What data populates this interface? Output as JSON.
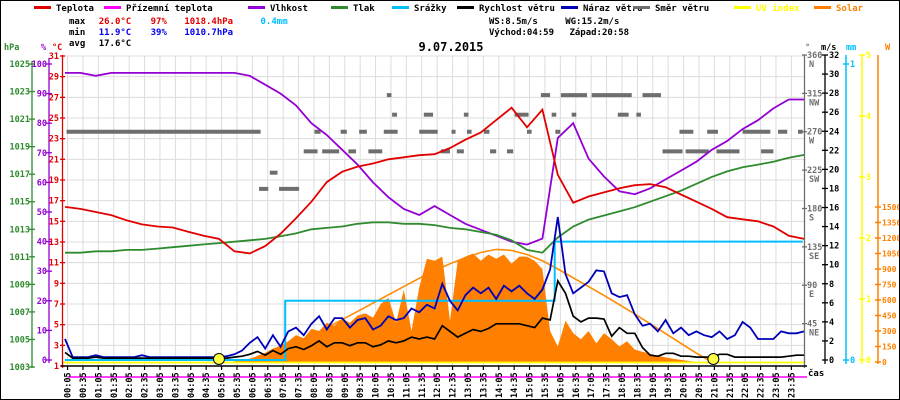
{
  "title": "9.07.2015",
  "legend": {
    "items": [
      {
        "key": "teplota",
        "label": "Teplota",
        "color": "#e10000",
        "text_color": "#000000"
      },
      {
        "key": "prizemni-teplota",
        "label": "Přízemní teplota",
        "color": "#ff00ff",
        "text_color": "#000000"
      },
      {
        "key": "vlhkost",
        "label": "Vlhkost",
        "color": "#9400d3",
        "text_color": "#000000"
      },
      {
        "key": "tlak",
        "label": "Tlak",
        "color": "#2e8b2e",
        "text_color": "#000000"
      },
      {
        "key": "srazky",
        "label": "Srážky",
        "color": "#00bfff",
        "text_color": "#000000"
      },
      {
        "key": "rychlost-vetru",
        "label": "Rychlost větru",
        "color": "#000000",
        "text_color": "#000000"
      },
      {
        "key": "naraz-vetru",
        "label": "Náraz větru",
        "color": "#0000b8",
        "text_color": "#000000"
      },
      {
        "key": "smer-vetru",
        "label": "Směr větru",
        "color": "#6e6e6e",
        "text_color": "#000000"
      },
      {
        "key": "uv-index",
        "label": "UV index",
        "color": "#ffff00",
        "text_color": "#ffff00"
      },
      {
        "key": "solar",
        "label": "Solar",
        "color": "#ff8000",
        "text_color": "#ff8000"
      }
    ]
  },
  "stats": {
    "max_label": "max",
    "max_temp": "26.0°C",
    "max_hum": "97%",
    "max_pres": "1018.4hPa",
    "rain_total": "0.4mm",
    "min_label": "min",
    "min_temp": "11.9°C",
    "min_hum": "39%",
    "min_pres": "1010.7hPa",
    "avg_label": "avg",
    "avg_temp": "17.6°C",
    "ws": "WS:8.5m/s",
    "wg": "WG:15.2m/s",
    "sunrise": "Východ:04:59",
    "sunset": "Západ:20:58"
  },
  "chart_data": {
    "type": "line",
    "title": "9.07.2015",
    "x_axis_label": "čas",
    "x_hours_range": [
      0,
      24
    ],
    "x_tick_labels": [
      "00:05",
      "00:35",
      "01:05",
      "01:35",
      "02:05",
      "02:35",
      "03:05",
      "03:35",
      "04:05",
      "04:35",
      "05:05",
      "05:35",
      "06:05",
      "06:35",
      "07:05",
      "07:35",
      "08:05",
      "08:35",
      "09:05",
      "09:35",
      "10:05",
      "10:35",
      "11:05",
      "11:35",
      "12:05",
      "12:35",
      "13:05",
      "13:35",
      "14:05",
      "14:35",
      "15:05",
      "15:35",
      "16:05",
      "16:35",
      "17:05",
      "17:35",
      "18:05",
      "18:35",
      "19:05",
      "19:35",
      "20:05",
      "20:35",
      "21:05",
      "21:35",
      "22:05",
      "22:35",
      "23:05",
      "23:35"
    ],
    "axes": {
      "pressure_hpa": {
        "header": "hPa",
        "color": "#2e8b2e",
        "ticks": [
          1025,
          1023,
          1021,
          1019,
          1017,
          1015,
          1013,
          1011,
          1009,
          1007,
          1005,
          1003
        ],
        "range": [
          1003,
          1025
        ]
      },
      "humidity_pct": {
        "header": "%",
        "color": "#9400d3",
        "ticks": [
          100,
          90,
          80,
          70,
          60,
          50,
          40,
          30,
          20,
          10,
          0
        ],
        "range": [
          0,
          100
        ]
      },
      "temp_c": {
        "header": "°C",
        "color": "#e10000",
        "ticks": [
          31,
          29,
          27,
          25,
          23,
          21,
          19,
          17,
          15,
          13,
          11,
          9,
          7,
          5,
          3,
          1
        ],
        "range": [
          1,
          31
        ]
      },
      "wind_dir_deg": {
        "header": "°",
        "color": "#6e6e6e",
        "ticks": [
          [
            360,
            "N"
          ],
          [
            315,
            "NW"
          ],
          [
            270,
            "W"
          ],
          [
            225,
            "SW"
          ],
          [
            180,
            "S"
          ],
          [
            135,
            "SE"
          ],
          [
            90,
            "E"
          ],
          [
            45,
            "NE"
          ]
        ],
        "range": [
          0,
          360
        ]
      },
      "wind_ms": {
        "header": "m/s",
        "color": "#000000",
        "ticks": [
          32,
          30,
          28,
          26,
          24,
          22,
          20,
          18,
          16,
          14,
          12,
          10,
          8,
          6,
          4,
          2,
          0
        ],
        "range": [
          0,
          32
        ]
      },
      "rain_mm": {
        "header": "mm",
        "color": "#00bfff",
        "ticks": [
          1,
          0
        ],
        "range": [
          0,
          1
        ]
      },
      "uv_index": {
        "header": "",
        "color": "#ffff00",
        "ticks": [
          5,
          4,
          3,
          2,
          1,
          0
        ],
        "range": [
          0,
          5
        ]
      },
      "solar_w": {
        "header": "W",
        "color": "#ff8000",
        "ticks": [
          1500,
          1350,
          1200,
          1050,
          900,
          750,
          600,
          450,
          300,
          150,
          0
        ],
        "range": [
          0,
          1500
        ]
      }
    },
    "series": {
      "temperature_c": {
        "step_h": 0.5,
        "values": [
          16.4,
          16.2,
          15.9,
          15.6,
          15.1,
          14.7,
          14.5,
          14.4,
          14.0,
          13.6,
          13.3,
          12.1,
          11.9,
          12.6,
          13.8,
          15.3,
          16.9,
          18.8,
          19.8,
          20.3,
          20.6,
          21.0,
          21.2,
          21.4,
          21.5,
          22.1,
          22.9,
          23.6,
          24.8,
          26.0,
          24.1,
          25.8,
          19.5,
          16.8,
          17.4,
          17.8,
          18.2,
          18.5,
          18.6,
          18.3,
          17.6,
          16.9,
          16.2,
          15.4,
          15.2,
          15.0,
          14.5,
          13.6,
          13.3
        ]
      },
      "humidity_pct": {
        "step_h": 0.5,
        "values": [
          97,
          97,
          96,
          97,
          97,
          97,
          97,
          97,
          97,
          97,
          97,
          97,
          96,
          93,
          90,
          86,
          80,
          76,
          71,
          66,
          60,
          55,
          51,
          49,
          52,
          49,
          46,
          44,
          42,
          40,
          39,
          41,
          75,
          80,
          68,
          62,
          57,
          56,
          58,
          61,
          64,
          67,
          71,
          74,
          78,
          81,
          85,
          88,
          88
        ]
      },
      "pressure_hpa": {
        "step_h": 0.5,
        "values": [
          1011.3,
          1011.3,
          1011.4,
          1011.4,
          1011.5,
          1011.5,
          1011.6,
          1011.7,
          1011.8,
          1011.9,
          1012.0,
          1012.1,
          1012.2,
          1012.3,
          1012.5,
          1012.7,
          1013.0,
          1013.1,
          1013.2,
          1013.4,
          1013.5,
          1013.5,
          1013.4,
          1013.4,
          1013.3,
          1013.1,
          1013.0,
          1012.8,
          1012.6,
          1012.2,
          1011.5,
          1011.3,
          1012.4,
          1013.2,
          1013.7,
          1014.0,
          1014.3,
          1014.6,
          1015.0,
          1015.4,
          1015.8,
          1016.3,
          1016.8,
          1017.2,
          1017.5,
          1017.7,
          1017.9,
          1018.2,
          1018.4
        ]
      },
      "gust_ms": {
        "step_h": 0.25,
        "values": [
          2.2,
          0.3,
          0.3,
          0.3,
          0.5,
          0.3,
          0.3,
          0.3,
          0.3,
          0.3,
          0.5,
          0.3,
          0.3,
          0.3,
          0.3,
          0.3,
          0.3,
          0.3,
          0.3,
          0.3,
          0.3,
          0.4,
          0.6,
          1.0,
          1.8,
          2.4,
          1.2,
          2.6,
          1.4,
          3.0,
          3.4,
          2.6,
          3.8,
          4.6,
          3.2,
          4.4,
          4.4,
          3.4,
          4.2,
          4.4,
          3.2,
          3.6,
          4.6,
          4.2,
          4.4,
          5.4,
          5.0,
          5.8,
          5.4,
          8.0,
          6.2,
          5.2,
          6.8,
          7.6,
          7.0,
          7.6,
          6.4,
          7.8,
          7.2,
          7.8,
          7.0,
          6.4,
          7.4,
          9.5,
          15.0,
          9.0,
          7.0,
          7.6,
          8.2,
          9.4,
          9.3,
          7.0,
          6.6,
          6.8,
          4.8,
          3.6,
          3.8,
          3.0,
          4.2,
          2.8,
          3.4,
          2.6,
          3.0,
          2.6,
          2.4,
          3.0,
          2.2,
          2.6,
          4.0,
          3.4,
          2.2,
          2.2,
          2.2,
          3.0,
          2.8,
          2.8,
          3.0
        ]
      },
      "wind_ms": {
        "step_h": 0.25,
        "values": [
          0.8,
          0.2,
          0.2,
          0.2,
          0.3,
          0.2,
          0.2,
          0.2,
          0.2,
          0.2,
          0.2,
          0.2,
          0.2,
          0.2,
          0.2,
          0.2,
          0.2,
          0.2,
          0.2,
          0.2,
          0.2,
          0.2,
          0.3,
          0.4,
          0.6,
          0.9,
          0.5,
          1.0,
          0.6,
          1.2,
          1.4,
          1.1,
          1.5,
          2.0,
          1.4,
          1.8,
          1.8,
          1.5,
          1.8,
          1.8,
          1.4,
          1.6,
          2.0,
          1.8,
          2.0,
          2.4,
          2.2,
          2.4,
          2.2,
          3.6,
          3.0,
          2.4,
          2.8,
          3.2,
          3.0,
          3.3,
          3.8,
          3.8,
          3.8,
          3.8,
          3.6,
          3.4,
          4.4,
          4.2,
          8.3,
          7.0,
          4.6,
          4.0,
          4.4,
          4.4,
          4.3,
          2.5,
          3.4,
          2.8,
          2.8,
          1.3,
          0.5,
          0.4,
          0.7,
          0.7,
          0.4,
          0.4,
          0.3,
          0.3,
          0.3,
          0.6,
          0.6,
          0.3,
          0.3,
          0.3,
          0.3,
          0.3,
          0.3,
          0.3,
          0.4,
          0.5,
          0.5
        ]
      },
      "solar_actual_w": {
        "step_h": 0.25,
        "values": [
          0,
          0,
          0,
          0,
          0,
          0,
          0,
          0,
          0,
          0,
          0,
          0,
          0,
          0,
          0,
          0,
          0,
          0,
          0,
          0,
          0,
          0,
          0,
          5,
          20,
          60,
          90,
          130,
          160,
          200,
          260,
          230,
          320,
          300,
          380,
          350,
          420,
          380,
          450,
          470,
          430,
          560,
          620,
          380,
          700,
          300,
          720,
          1000,
          980,
          1020,
          400,
          980,
          1020,
          1050,
          980,
          1040,
          1000,
          1040,
          950,
          1020,
          1020,
          980,
          900,
          300,
          150,
          400,
          280,
          220,
          300,
          180,
          280,
          220,
          150,
          200,
          120,
          100,
          80,
          60,
          45,
          30,
          20,
          10,
          0,
          0,
          0,
          0,
          0,
          0,
          0,
          0,
          0,
          0,
          0,
          0,
          0,
          0,
          0
        ]
      },
      "solar_theoretical_w": {
        "step_h": 0.5,
        "values": [
          0,
          0,
          0,
          0,
          0,
          0,
          0,
          0,
          0,
          0,
          0,
          0,
          25,
          70,
          125,
          185,
          255,
          330,
          410,
          490,
          570,
          650,
          730,
          810,
          885,
          950,
          1010,
          1060,
          1090,
          1080,
          1040,
          980,
          900,
          815,
          730,
          645,
          555,
          465,
          370,
          275,
          180,
          85,
          0,
          0,
          0,
          0,
          0,
          0,
          0
        ]
      },
      "rain_mm_steps": [
        [
          0,
          0
        ],
        [
          7.15,
          0
        ],
        [
          7.15,
          0.2
        ],
        [
          15.9,
          0.2
        ],
        [
          15.9,
          0.4
        ],
        [
          23.95,
          0.4
        ]
      ],
      "uv_index": {
        "constant": 0
      },
      "ground_temp_line": {
        "below_scale": true
      },
      "wind_dir_segments": [
        [
          270,
          0.05,
          6.35
        ],
        [
          203,
          6.3,
          6.6
        ],
        [
          222,
          6.65,
          6.9
        ],
        [
          203,
          6.95,
          7.6
        ],
        [
          247,
          7.75,
          8.2
        ],
        [
          270,
          8.1,
          8.3
        ],
        [
          247,
          8.35,
          8.9
        ],
        [
          270,
          8.95,
          9.15
        ],
        [
          247,
          9.2,
          9.45
        ],
        [
          270,
          9.55,
          9.8
        ],
        [
          247,
          9.85,
          10.3
        ],
        [
          270,
          10.35,
          10.8
        ],
        [
          313,
          10.45,
          10.6
        ],
        [
          290,
          10.62,
          10.78
        ],
        [
          270,
          11.5,
          12.1
        ],
        [
          290,
          11.65,
          11.95
        ],
        [
          247,
          12.2,
          12.5
        ],
        [
          270,
          12.55,
          12.68
        ],
        [
          247,
          12.72,
          12.95
        ],
        [
          290,
          12.95,
          13.1
        ],
        [
          270,
          13.05,
          13.2
        ],
        [
          270,
          13.6,
          13.78
        ],
        [
          247,
          13.8,
          14.0
        ],
        [
          247,
          14.35,
          14.55
        ],
        [
          290,
          14.6,
          15.05
        ],
        [
          270,
          15.0,
          15.15
        ],
        [
          313,
          15.45,
          15.75
        ],
        [
          290,
          15.8,
          15.95
        ],
        [
          270,
          15.92,
          16.08
        ],
        [
          313,
          16.1,
          16.95
        ],
        [
          290,
          16.45,
          16.6
        ],
        [
          313,
          17.1,
          18.4
        ],
        [
          290,
          17.95,
          18.3
        ],
        [
          290,
          18.55,
          18.7
        ],
        [
          313,
          18.75,
          19.35
        ],
        [
          247,
          19.4,
          20.05
        ],
        [
          270,
          19.95,
          20.4
        ],
        [
          247,
          20.15,
          20.9
        ],
        [
          270,
          20.85,
          21.2
        ],
        [
          247,
          21.15,
          21.9
        ],
        [
          270,
          22.0,
          22.9
        ],
        [
          247,
          22.6,
          23.0
        ],
        [
          270,
          23.15,
          23.45
        ],
        [
          270,
          23.8,
          23.95
        ]
      ]
    },
    "sun_markers": {
      "sunrise_h": 5.0,
      "sunset_h": 21.05
    }
  },
  "colors": {
    "temperature": "#e10000",
    "ground_temperature": "#ff00ff",
    "humidity": "#9400d3",
    "pressure": "#2e8b2e",
    "rain": "#00bfff",
    "wind": "#000000",
    "gust": "#0000b8",
    "direction": "#6e6e6e",
    "uv": "#ffff00",
    "solar_line": "#ff8c00",
    "solar_fill": "#ff8000",
    "grid": "#dcdcdc",
    "sun_marker": "#ffff44"
  }
}
